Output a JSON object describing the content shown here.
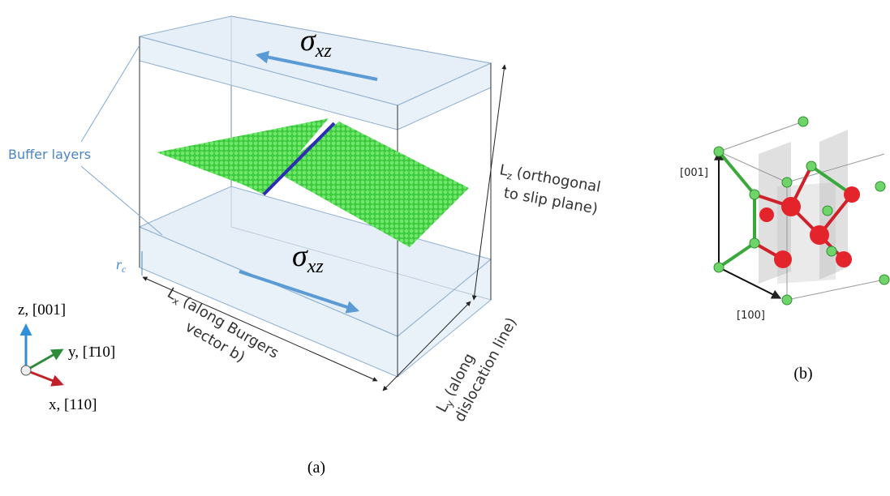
{
  "panel_a": {
    "stress_top": {
      "symbol": "σ",
      "subscript": "xz"
    },
    "stress_bottom": {
      "symbol": "σ",
      "subscript": "xz"
    },
    "buffer_layers": "Buffer layers",
    "rc": {
      "symbol": "r",
      "subscript": "c"
    },
    "lz": {
      "symbol": "L",
      "subscript": "z",
      "lines": [
        "(orthogonal",
        "to slip plane)"
      ]
    },
    "lx": {
      "symbol": "L",
      "subscript": "x",
      "lines": [
        "(along Burgers",
        "vector b)"
      ]
    },
    "ly": {
      "symbol": "L",
      "subscript": "y",
      "lines": [
        "(along",
        "dislocation line)"
      ]
    },
    "axes": {
      "z": "z, [001]",
      "y": "y, [1̄10]",
      "x": "x, [110]"
    },
    "caption": "(a)"
  },
  "panel_b": {
    "direction_z": "[001]",
    "direction_x": "[100]",
    "caption": "(b)"
  }
}
